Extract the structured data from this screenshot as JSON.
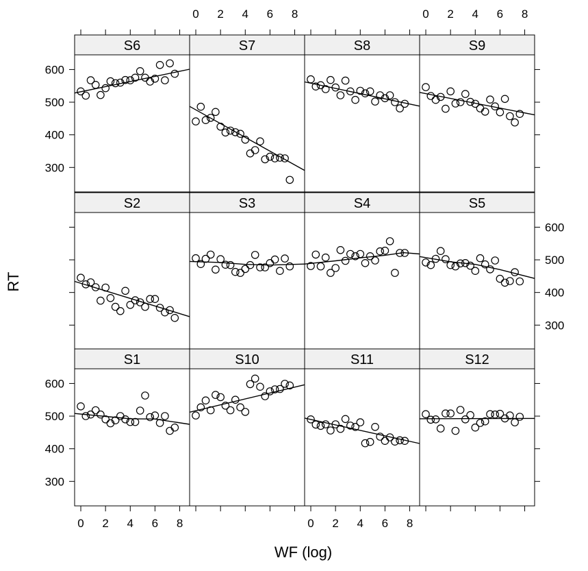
{
  "chart_data": {
    "type": "scatter",
    "xlabel": "WF (log)",
    "ylabel": "RT",
    "xlim": [
      -0.5,
      8.8
    ],
    "ylim": [
      225,
      645
    ],
    "x_ticks": [
      0,
      2,
      4,
      6,
      8
    ],
    "y_ticks": [
      300,
      400,
      500,
      600
    ],
    "layout": "4 columns x 3 rows (lattice)",
    "point_style": "open circle",
    "fit_line": "smoothed trend",
    "panels": [
      {
        "label": "S6",
        "row": 0,
        "col": 0,
        "x": [
          0,
          0.4,
          0.8,
          1.2,
          1.6,
          2,
          2.4,
          2.8,
          3.2,
          3.6,
          4,
          4.4,
          4.8,
          5.2,
          5.6,
          6,
          6.4,
          6.8,
          7.2,
          7.6
        ],
        "y": [
          533,
          520,
          567,
          553,
          522,
          543,
          564,
          558,
          560,
          568,
          567,
          575,
          595,
          575,
          563,
          572,
          614,
          567,
          619,
          587
        ],
        "fit": [
          [
            -0.5,
            528
          ],
          [
            8.8,
            601
          ]
        ]
      },
      {
        "label": "S7",
        "row": 0,
        "col": 1,
        "x": [
          0,
          0.4,
          0.8,
          1.2,
          1.6,
          2,
          2.4,
          2.8,
          3.2,
          3.6,
          4,
          4.4,
          4.8,
          5.2,
          5.6,
          6,
          6.4,
          6.8,
          7.2,
          7.6
        ],
        "y": [
          441,
          486,
          445,
          452,
          470,
          425,
          407,
          413,
          408,
          403,
          385,
          343,
          353,
          380,
          325,
          333,
          328,
          330,
          328,
          262
        ],
        "fit": [
          [
            -0.5,
            487
          ],
          [
            8.8,
            291
          ]
        ]
      },
      {
        "label": "S8",
        "row": 0,
        "col": 2,
        "x": [
          0,
          0.4,
          0.8,
          1.2,
          1.6,
          2,
          2.4,
          2.8,
          3.2,
          3.6,
          4,
          4.4,
          4.8,
          5.2,
          5.6,
          6,
          6.4,
          6.8,
          7.2,
          7.6
        ],
        "y": [
          570,
          548,
          552,
          540,
          568,
          545,
          521,
          566,
          533,
          507,
          535,
          527,
          533,
          502,
          521,
          512,
          521,
          500,
          481,
          495
        ],
        "fit": [
          [
            -0.5,
            562
          ],
          [
            8.8,
            488
          ]
        ]
      },
      {
        "label": "S9",
        "row": 0,
        "col": 3,
        "x": [
          0,
          0.4,
          0.8,
          1.2,
          1.6,
          2,
          2.4,
          2.8,
          3.2,
          3.6,
          4,
          4.4,
          4.8,
          5.2,
          5.6,
          6,
          6.4,
          6.8,
          7.2,
          7.6
        ],
        "y": [
          546,
          519,
          507,
          516,
          480,
          533,
          496,
          500,
          525,
          501,
          495,
          481,
          471,
          508,
          487,
          469,
          510,
          457,
          438,
          464
        ],
        "fit": [
          [
            -0.5,
            530
          ],
          [
            8.8,
            461
          ]
        ]
      },
      {
        "label": "S2",
        "row": 1,
        "col": 0,
        "x": [
          0,
          0.4,
          0.8,
          1.2,
          1.6,
          2,
          2.4,
          2.8,
          3.2,
          3.6,
          4,
          4.4,
          4.8,
          5.2,
          5.6,
          6,
          6.4,
          6.8,
          7.2,
          7.6
        ],
        "y": [
          445,
          425,
          431,
          416,
          375,
          415,
          383,
          356,
          343,
          405,
          362,
          376,
          370,
          356,
          380,
          380,
          353,
          339,
          346,
          322
        ],
        "fit": [
          [
            -0.5,
            434
          ],
          [
            8.8,
            326
          ]
        ]
      },
      {
        "label": "S3",
        "row": 1,
        "col": 1,
        "x": [
          0,
          0.4,
          0.8,
          1.2,
          1.6,
          2,
          2.4,
          2.8,
          3.2,
          3.6,
          4,
          4.4,
          4.8,
          5.2,
          5.6,
          6,
          6.4,
          6.8,
          7.2,
          7.6
        ],
        "y": [
          505,
          487,
          503,
          516,
          470,
          502,
          485,
          484,
          463,
          460,
          472,
          484,
          515,
          477,
          477,
          490,
          501,
          466,
          504,
          480
        ],
        "fit": [
          [
            -0.5,
            495
          ],
          [
            2,
            492
          ],
          [
            4,
            486
          ],
          [
            6,
            484
          ],
          [
            8.8,
            487
          ]
        ]
      },
      {
        "label": "S4",
        "row": 1,
        "col": 2,
        "x": [
          0,
          0.4,
          0.8,
          1.2,
          1.6,
          2,
          2.4,
          2.8,
          3.2,
          3.6,
          4,
          4.4,
          4.8,
          5.2,
          5.6,
          6,
          6.4,
          6.8,
          7.2,
          7.6
        ],
        "y": [
          481,
          516,
          480,
          507,
          460,
          475,
          530,
          497,
          518,
          511,
          518,
          490,
          511,
          498,
          526,
          528,
          557,
          460,
          521,
          521
        ],
        "fit": [
          [
            -0.5,
            487
          ],
          [
            2,
            497
          ],
          [
            4,
            506
          ],
          [
            6,
            514
          ],
          [
            7.5,
            522
          ],
          [
            8.8,
            518
          ]
        ]
      },
      {
        "label": "S5",
        "row": 1,
        "col": 3,
        "x": [
          0,
          0.4,
          0.8,
          1.2,
          1.6,
          2,
          2.4,
          2.8,
          3.2,
          3.6,
          4,
          4.4,
          4.8,
          5.2,
          5.6,
          6,
          6.4,
          6.8,
          7.2,
          7.6
        ],
        "y": [
          492,
          484,
          503,
          527,
          502,
          484,
          480,
          489,
          490,
          482,
          466,
          505,
          486,
          471,
          498,
          442,
          430,
          435,
          462,
          434
        ],
        "fit": [
          [
            -0.5,
            510
          ],
          [
            2,
            494
          ],
          [
            4,
            486
          ],
          [
            6,
            470
          ],
          [
            8.8,
            443
          ]
        ]
      },
      {
        "label": "S1",
        "row": 2,
        "col": 0,
        "x": [
          0,
          0.4,
          0.8,
          1.2,
          1.6,
          2,
          2.4,
          2.8,
          3.2,
          3.6,
          4,
          4.4,
          4.8,
          5.2,
          5.6,
          6,
          6.4,
          6.8,
          7.2,
          7.6
        ],
        "y": [
          530,
          500,
          505,
          518,
          505,
          490,
          478,
          487,
          500,
          490,
          482,
          482,
          517,
          563,
          497,
          502,
          479,
          500,
          455,
          465
        ],
        "fit": [
          [
            -0.5,
            508
          ],
          [
            2,
            499
          ],
          [
            4,
            492
          ],
          [
            6,
            491
          ],
          [
            8.8,
            475
          ]
        ]
      },
      {
        "label": "S10",
        "row": 2,
        "col": 1,
        "x": [
          0,
          0.4,
          0.8,
          1.2,
          1.6,
          2,
          2.4,
          2.8,
          3.2,
          3.6,
          4,
          4.4,
          4.8,
          5.2,
          5.6,
          6,
          6.4,
          6.8,
          7.2,
          7.6
        ],
        "y": [
          502,
          527,
          548,
          518,
          565,
          558,
          532,
          518,
          550,
          527,
          513,
          598,
          615,
          590,
          561,
          576,
          582,
          583,
          599,
          594
        ],
        "fit": [
          [
            -0.5,
            512
          ],
          [
            8.8,
            596
          ]
        ]
      },
      {
        "label": "S11",
        "row": 2,
        "col": 2,
        "x": [
          0,
          0.4,
          0.8,
          1.2,
          1.6,
          2,
          2.4,
          2.8,
          3.2,
          3.6,
          4,
          4.4,
          4.8,
          5.2,
          5.6,
          6,
          6.4,
          6.8,
          7.2,
          7.6
        ],
        "y": [
          490,
          474,
          470,
          475,
          456,
          475,
          461,
          491,
          471,
          467,
          481,
          417,
          421,
          467,
          437,
          424,
          435,
          422,
          426,
          424
        ],
        "fit": [
          [
            -0.5,
            494
          ],
          [
            8.8,
            416
          ]
        ]
      },
      {
        "label": "S12",
        "row": 2,
        "col": 3,
        "x": [
          0,
          0.4,
          0.8,
          1.2,
          1.6,
          2,
          2.4,
          2.8,
          3.2,
          3.6,
          4,
          4.4,
          4.8,
          5.2,
          5.6,
          6,
          6.4,
          6.8,
          7.2,
          7.6
        ],
        "y": [
          506,
          489,
          490,
          462,
          508,
          508,
          455,
          519,
          490,
          503,
          465,
          479,
          484,
          506,
          505,
          507,
          493,
          502,
          481,
          498
        ],
        "fit": [
          [
            -0.5,
            492
          ],
          [
            8.8,
            493
          ]
        ]
      }
    ]
  }
}
